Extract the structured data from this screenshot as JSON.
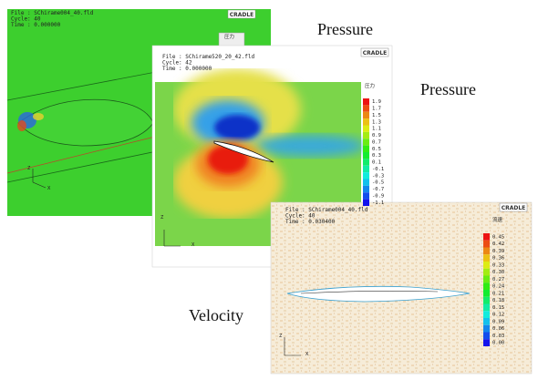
{
  "captions": [
    "Pressure",
    "Pressure",
    "Velocity"
  ],
  "panels": [
    {
      "logo": "CRADLE",
      "header": [
        "File : SChirame004_40.fld",
        "Cycle: 40",
        "Time : 0.000000"
      ],
      "legend_title": "圧力",
      "axes": [
        "Z",
        "X"
      ]
    },
    {
      "logo": "CRADLE",
      "header": [
        "File : SChirame520_20_42.fld",
        "Cycle: 42",
        "Time : 0.000000"
      ],
      "legend_title": "圧力",
      "legend_labels": [
        "1.9",
        "1.7",
        "1.5",
        "1.3",
        "1.1",
        "0.9",
        "0.7",
        "0.5",
        "0.3",
        "0.1",
        "-0.1",
        "-0.3",
        "-0.5",
        "-0.7",
        "-0.9",
        "-1.1"
      ],
      "axes": [
        "Z",
        "X"
      ]
    },
    {
      "logo": "CRADLE",
      "header": [
        "File : SChirame004_40.fld",
        "Cycle: 40",
        "Time : 0.030400"
      ],
      "legend_title": "流速",
      "legend_labels": [
        "0.45",
        "0.42",
        "0.39",
        "0.36",
        "0.33",
        "0.30",
        "0.27",
        "0.24",
        "0.21",
        "0.18",
        "0.15",
        "0.12",
        "0.09",
        "0.06",
        "0.03",
        "0.00"
      ],
      "axes": [
        "Z",
        "X"
      ]
    }
  ]
}
